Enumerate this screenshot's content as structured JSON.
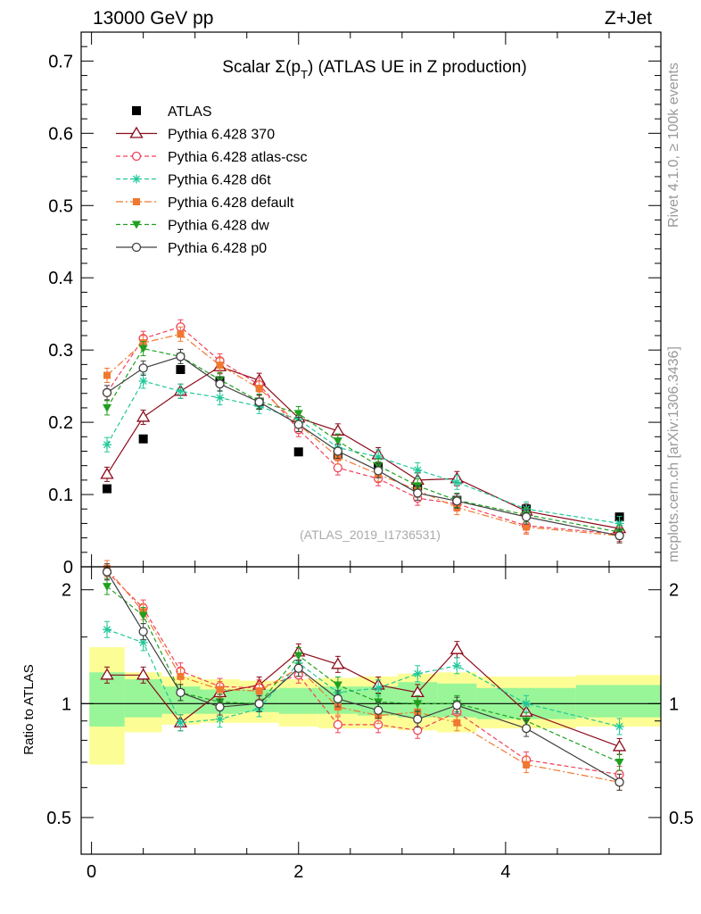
{
  "header": {
    "energy_label": "13000 GeV pp",
    "process_label": "Z+Jet"
  },
  "side_labels": {
    "rivet": "Rivet 4.1.0, ≥ 100k events",
    "mcplots": "mcplots.cern.ch [arXiv:1306.3436]"
  },
  "ratio_ylabel": "Ratio to ATLAS",
  "chart_data": [
    {
      "type": "scatter",
      "title": "Scalar Σ(pT) (ATLAS UE in Z production)",
      "title_main": "Scalar Σ(p",
      "title_sub": "T",
      "title_tail": ") (ATLAS UE in Z production)",
      "watermark": "(ATLAS_2019_I1736531)",
      "xlim": [
        -0.1,
        5.5
      ],
      "ylim": [
        0,
        0.74
      ],
      "yticks": [
        0.1,
        0.2,
        0.3,
        0.4,
        0.5,
        0.6,
        0.7
      ],
      "ytick_labels": [
        "0.1",
        "0.2",
        "0.3",
        "0.4",
        "0.5",
        "0.6",
        "0.7"
      ],
      "y_zero_label": "0",
      "x": [
        0.15,
        0.5,
        0.86,
        1.24,
        1.62,
        2.0,
        2.38,
        2.77,
        3.15,
        3.53,
        4.2,
        5.1
      ],
      "series": [
        {
          "name": "ATLAS",
          "color": "#000000",
          "marker": "square",
          "line": "none",
          "values": [
            0.108,
            0.177,
            0.273,
            0.257,
            0.228,
            0.159,
            0.155,
            0.138,
            0.112,
            0.092,
            0.08,
            0.069
          ]
        },
        {
          "name": "Pythia 6.428 370",
          "color": "#8b0a1a",
          "marker": "triangle-open",
          "line": "solid",
          "values": [
            0.128,
            0.207,
            0.243,
            0.277,
            0.258,
            0.206,
            0.188,
            0.155,
            0.12,
            0.122,
            0.077,
            0.053
          ]
        },
        {
          "name": "Pythia 6.428 atlas-csc",
          "color": "#f0405a",
          "marker": "circle-open",
          "line": "dashed",
          "values": [
            0.241,
            0.316,
            0.332,
            0.285,
            0.252,
            0.19,
            0.137,
            0.122,
            0.095,
            0.087,
            0.057,
            0.045
          ]
        },
        {
          "name": "Pythia 6.428 d6t",
          "color": "#20c89a",
          "marker": "star",
          "line": "dashed",
          "values": [
            0.169,
            0.257,
            0.243,
            0.234,
            0.222,
            0.204,
            0.165,
            0.152,
            0.134,
            0.117,
            0.08,
            0.06
          ]
        },
        {
          "name": "Pythia 6.428 default",
          "color": "#f07830",
          "marker": "square-filled",
          "line": "dashdot",
          "values": [
            0.265,
            0.31,
            0.322,
            0.279,
            0.247,
            0.197,
            0.152,
            0.128,
            0.106,
            0.082,
            0.055,
            0.043
          ]
        },
        {
          "name": "Pythia 6.428 dw",
          "color": "#1fa01f",
          "marker": "triangle-down",
          "line": "dashed",
          "values": [
            0.22,
            0.302,
            0.291,
            0.259,
            0.229,
            0.212,
            0.174,
            0.14,
            0.112,
            0.092,
            0.072,
            0.048
          ]
        },
        {
          "name": "Pythia 6.428 p0",
          "color": "#404040",
          "marker": "circle-open",
          "line": "solid",
          "values": [
            0.241,
            0.275,
            0.291,
            0.253,
            0.228,
            0.197,
            0.16,
            0.133,
            0.102,
            0.091,
            0.069,
            0.043
          ]
        }
      ]
    },
    {
      "type": "scatter",
      "title": "Ratio to ATLAS",
      "ylabel": "Ratio to ATLAS",
      "xlim": [
        -0.1,
        5.5
      ],
      "ylim": [
        0.4,
        2.3
      ],
      "log_y": true,
      "yticks": [
        0.5,
        1,
        2
      ],
      "ytick_labels": [
        "0.5",
        "1",
        "2"
      ],
      "xticks": [
        0,
        2,
        4
      ],
      "xtick_labels": [
        "0",
        "2",
        "4"
      ],
      "band_edges": [
        -0.02,
        0.32,
        0.68,
        1.05,
        1.43,
        1.81,
        2.19,
        2.57,
        2.96,
        3.34,
        3.72,
        4.68,
        5.53
      ],
      "band_green": [
        [
          0.87,
          1.21
        ],
        [
          0.92,
          1.16
        ],
        [
          0.94,
          1.11
        ],
        [
          0.94,
          1.09
        ],
        [
          0.95,
          1.09
        ],
        [
          0.94,
          1.1
        ],
        [
          0.94,
          1.11
        ],
        [
          0.93,
          1.11
        ],
        [
          0.92,
          1.14
        ],
        [
          0.92,
          1.13
        ],
        [
          0.91,
          1.1
        ],
        [
          0.92,
          1.12
        ]
      ],
      "band_yellow": [
        [
          0.69,
          1.41
        ],
        [
          0.84,
          1.21
        ],
        [
          0.88,
          1.18
        ],
        [
          0.89,
          1.16
        ],
        [
          0.89,
          1.15
        ],
        [
          0.87,
          1.16
        ],
        [
          0.86,
          1.17
        ],
        [
          0.86,
          1.18
        ],
        [
          0.85,
          1.2
        ],
        [
          0.84,
          1.21
        ],
        [
          0.86,
          1.18
        ],
        [
          0.87,
          1.19
        ]
      ],
      "x": [
        0.15,
        0.5,
        0.86,
        1.24,
        1.62,
        2.0,
        2.38,
        2.77,
        3.15,
        3.53,
        4.2,
        5.1
      ],
      "series": [
        {
          "name": "Pythia 6.428 370",
          "color": "#8b0a1a",
          "marker": "triangle-open",
          "line": "solid",
          "values": [
            1.19,
            1.19,
            0.89,
            1.07,
            1.12,
            1.37,
            1.27,
            1.12,
            1.07,
            1.39,
            0.95,
            0.77
          ]
        },
        {
          "name": "Pythia 6.428 atlas-csc",
          "color": "#f0405a",
          "marker": "circle-open",
          "line": "dashed",
          "values": [
            2.23,
            1.79,
            1.22,
            1.11,
            1.1,
            1.19,
            0.88,
            0.88,
            0.85,
            0.95,
            0.71,
            0.65
          ]
        },
        {
          "name": "Pythia 6.428 d6t",
          "color": "#20c89a",
          "marker": "star",
          "line": "dashed",
          "values": [
            1.57,
            1.45,
            0.89,
            0.91,
            0.97,
            1.28,
            1.07,
            1.1,
            1.2,
            1.26,
            1.0,
            0.87
          ]
        },
        {
          "name": "Pythia 6.428 default",
          "color": "#f07830",
          "marker": "square-filled",
          "line": "dashdot",
          "values": [
            2.45,
            1.75,
            1.18,
            1.09,
            1.08,
            1.24,
            0.98,
            0.93,
            0.95,
            0.89,
            0.69,
            0.62
          ]
        },
        {
          "name": "Pythia 6.428 dw",
          "color": "#1fa01f",
          "marker": "triangle-down",
          "line": "dashed",
          "values": [
            2.04,
            1.71,
            1.07,
            1.01,
            1.0,
            1.34,
            1.12,
            1.01,
            1.0,
            1.0,
            0.9,
            0.7
          ]
        },
        {
          "name": "Pythia 6.428 p0",
          "color": "#404040",
          "marker": "circle-open",
          "line": "solid",
          "values": [
            2.23,
            1.55,
            1.07,
            0.98,
            1.0,
            1.24,
            1.03,
            0.96,
            0.91,
            0.99,
            0.86,
            0.62
          ]
        }
      ]
    }
  ]
}
